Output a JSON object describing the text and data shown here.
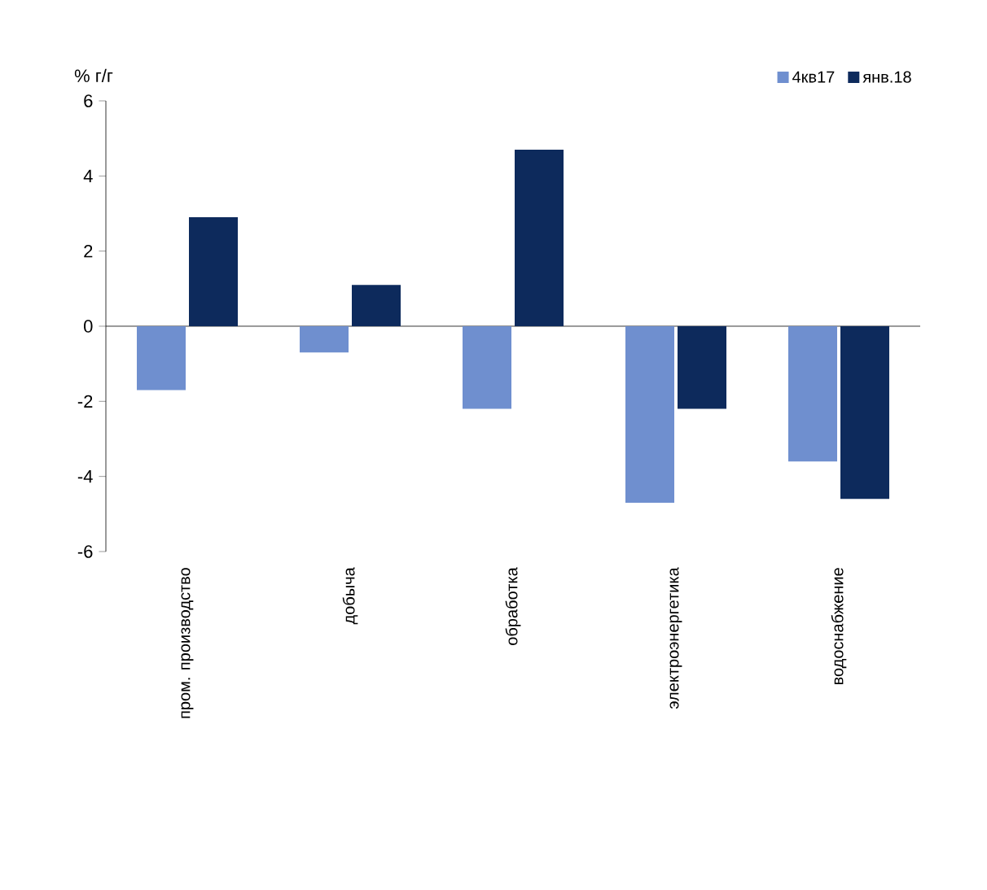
{
  "chart_data": {
    "type": "bar",
    "ylabel": "% г/г",
    "categories": [
      "пром. производство",
      "добыча",
      "обработка",
      "электроэнергетика",
      "водоснабжение"
    ],
    "series": [
      {
        "name": "4кв17",
        "color": "#6f8fcf",
        "values": [
          -1.7,
          -0.7,
          -2.2,
          -4.7,
          -3.6
        ]
      },
      {
        "name": "янв.18",
        "color": "#0d2a5c",
        "values": [
          2.9,
          1.1,
          4.7,
          -2.2,
          -4.6
        ]
      }
    ],
    "ylim": [
      -6,
      6
    ],
    "yticks": [
      -6,
      -4,
      -2,
      0,
      2,
      4,
      6
    ],
    "legend": "top right"
  }
}
